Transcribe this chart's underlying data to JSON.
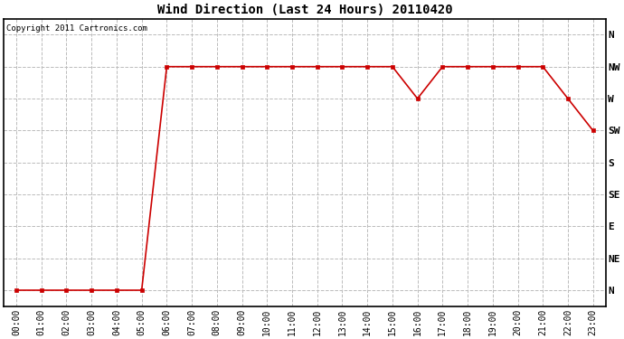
{
  "title": "Wind Direction (Last 24 Hours) 20110420",
  "copyright": "Copyright 2011 Cartronics.com",
  "background_color": "#ffffff",
  "plot_bg_color": "#ffffff",
  "grid_color": "#bbbbbb",
  "line_color": "#cc0000",
  "marker_color": "#cc0000",
  "x_labels": [
    "00:00",
    "01:00",
    "02:00",
    "03:00",
    "04:00",
    "05:00",
    "06:00",
    "07:00",
    "08:00",
    "09:00",
    "10:00",
    "11:00",
    "12:00",
    "13:00",
    "14:00",
    "15:00",
    "16:00",
    "17:00",
    "18:00",
    "19:00",
    "20:00",
    "21:00",
    "22:00",
    "23:00"
  ],
  "y_labels": [
    "N",
    "NE",
    "E",
    "SE",
    "S",
    "SW",
    "W",
    "NW",
    "N"
  ],
  "y_ticks": [
    0,
    1,
    2,
    3,
    4,
    5,
    6,
    7,
    8
  ],
  "data_values": [
    0,
    0,
    0,
    0,
    0,
    0,
    7,
    7,
    7,
    7,
    7,
    7,
    7,
    7,
    7,
    7,
    6,
    7,
    7,
    7,
    7,
    7,
    6,
    5
  ],
  "xlim": [
    -0.5,
    23.5
  ],
  "ylim": [
    -0.5,
    8.5
  ],
  "title_fontsize": 10,
  "tick_fontsize": 7,
  "ytick_fontsize": 8
}
